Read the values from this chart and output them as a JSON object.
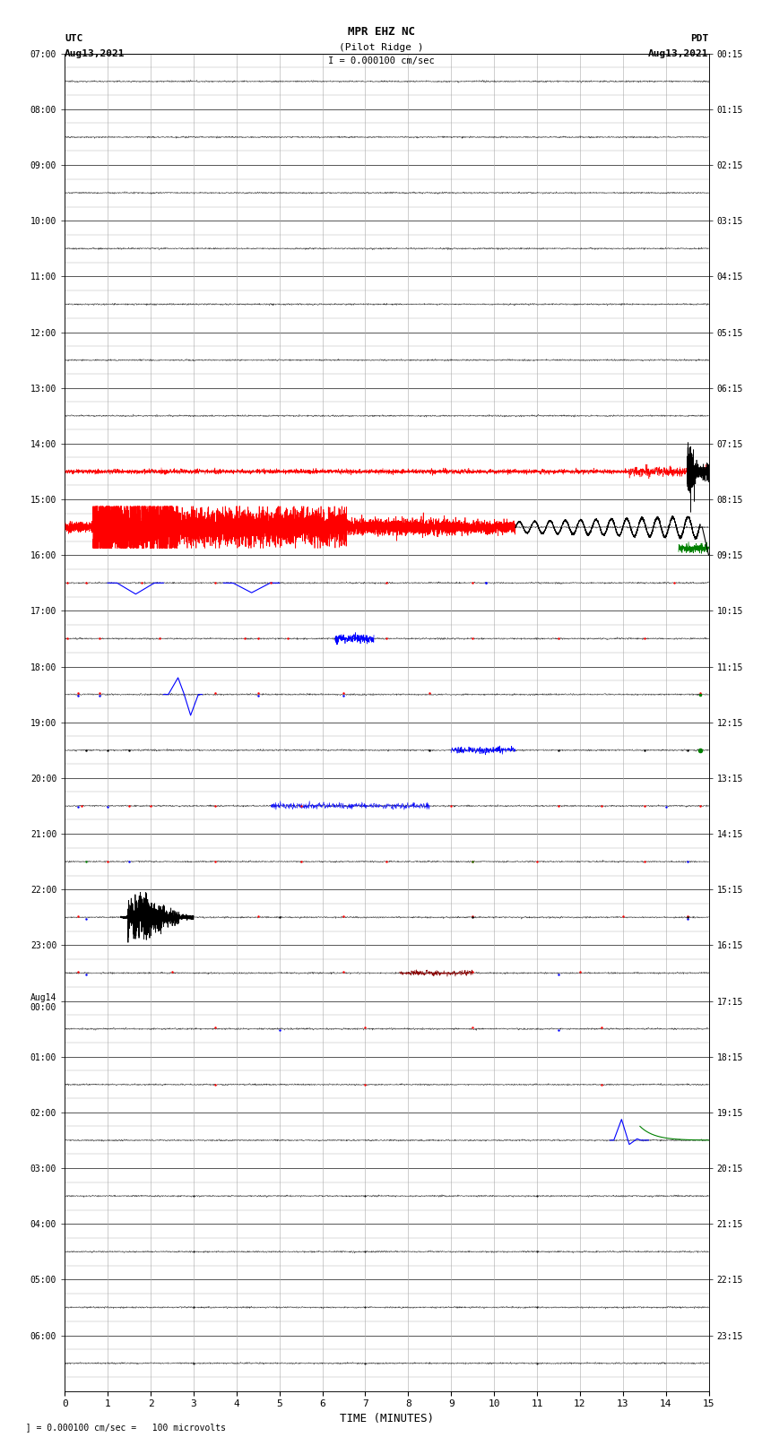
{
  "title_line1": "MPR EHZ NC",
  "title_line2": "(Pilot Ridge )",
  "title_scale": "I = 0.000100 cm/sec",
  "left_header_line1": "UTC",
  "left_header_line2": "Aug13,2021",
  "right_header_line1": "PDT",
  "right_header_line2": "Aug13,2021",
  "footer_note": "  ] = 0.000100 cm/sec =   100 microvolts",
  "xlabel": "TIME (MINUTES)",
  "xlim": [
    0,
    15
  ],
  "xticks": [
    0,
    1,
    2,
    3,
    4,
    5,
    6,
    7,
    8,
    9,
    10,
    11,
    12,
    13,
    14,
    15
  ],
  "num_rows": 24,
  "sub_rows": 4,
  "left_ytick_labels": [
    "07:00",
    "08:00",
    "09:00",
    "10:00",
    "11:00",
    "12:00",
    "13:00",
    "14:00",
    "15:00",
    "16:00",
    "17:00",
    "18:00",
    "19:00",
    "20:00",
    "21:00",
    "22:00",
    "23:00",
    "Aug14\n00:00",
    "01:00",
    "02:00",
    "03:00",
    "04:00",
    "05:00",
    "06:00"
  ],
  "right_ytick_labels": [
    "00:15",
    "01:15",
    "02:15",
    "03:15",
    "04:15",
    "05:15",
    "06:15",
    "07:15",
    "08:15",
    "09:15",
    "10:15",
    "11:15",
    "12:15",
    "13:15",
    "14:15",
    "15:15",
    "16:15",
    "17:15",
    "18:15",
    "19:15",
    "20:15",
    "21:15",
    "22:15",
    "23:15"
  ],
  "bg_color": "#ffffff",
  "grid_color_major": "#555555",
  "grid_color_minor": "#aaaaaa"
}
